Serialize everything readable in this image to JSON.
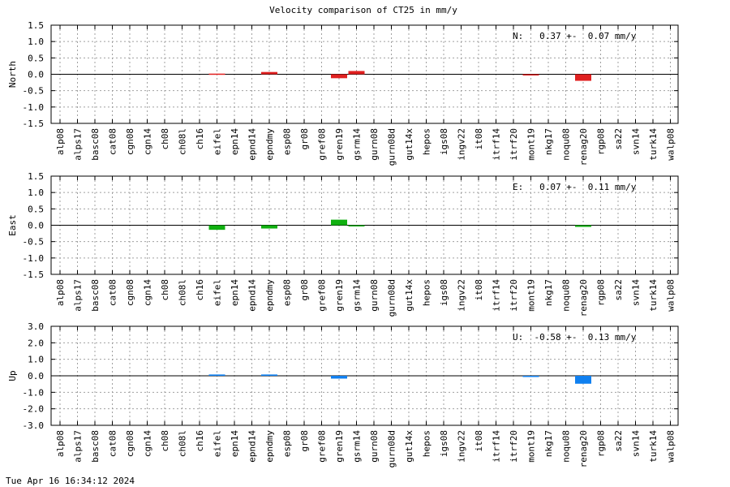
{
  "title": "Velocity comparison of CT25 in mm/y",
  "timestamp": "Tue Apr 16 16:34:12 2024",
  "chart_data": [
    {
      "type": "bar",
      "ylabel": "North",
      "annotation": "N:   0.37 +-  0.07 mm/y",
      "color": "#e02020",
      "ylim": [
        -1.5,
        1.5
      ],
      "yticks": [
        1.5,
        1.0,
        0.5,
        0.0,
        -0.5,
        -1.0,
        -1.5
      ],
      "ytick_labels": [
        "1.5",
        "1.0",
        "0.5",
        "0.0",
        "-0.5",
        "-1.0",
        "-1.5"
      ],
      "grid": true,
      "categories": [
        "alp08",
        "alps17",
        "basc08",
        "cat08",
        "cgn08",
        "cgn14",
        "ch08",
        "ch08l",
        "ch16",
        "eifel",
        "epn14",
        "epnd14",
        "epndmy",
        "esp08",
        "gr08",
        "gref08",
        "gren19",
        "gsrm14",
        "gurn08",
        "gurn08d",
        "gut14x",
        "hepos",
        "igs08",
        "ingv22",
        "it08",
        "itrf14",
        "itrf20",
        "mont19",
        "nkg17",
        "noqu08",
        "renag20",
        "rgp08",
        "sa22",
        "svn14",
        "turk14",
        "walp08"
      ],
      "values": [
        0,
        0,
        0,
        0,
        0,
        0,
        0,
        0,
        0,
        0.02,
        0,
        0,
        0.07,
        0,
        0,
        0,
        -0.12,
        0.1,
        0,
        0,
        0,
        0,
        0,
        0,
        0,
        0,
        0,
        -0.02,
        0,
        0,
        -0.2,
        0,
        0,
        0,
        0,
        0
      ]
    },
    {
      "type": "bar",
      "ylabel": "East",
      "annotation": "E:   0.07 +-  0.11 mm/y",
      "color": "#10b010",
      "ylim": [
        -1.5,
        1.5
      ],
      "yticks": [
        1.5,
        1.0,
        0.5,
        0.0,
        -0.5,
        -1.0,
        -1.5
      ],
      "ytick_labels": [
        "1.5",
        "1.0",
        "0.5",
        "0.0",
        "-0.5",
        "-1.0",
        "-1.5"
      ],
      "grid": true,
      "categories": [
        "alp08",
        "alps17",
        "basc08",
        "cat08",
        "cgn08",
        "cgn14",
        "ch08",
        "ch08l",
        "ch16",
        "eifel",
        "epn14",
        "epnd14",
        "epndmy",
        "esp08",
        "gr08",
        "gref08",
        "gren19",
        "gsrm14",
        "gurn08",
        "gurn08d",
        "gut14x",
        "hepos",
        "igs08",
        "ingv22",
        "it08",
        "itrf14",
        "itrf20",
        "mont19",
        "nkg17",
        "noqu08",
        "renag20",
        "rgp08",
        "sa22",
        "svn14",
        "turk14",
        "walp08"
      ],
      "values": [
        0,
        0,
        0,
        0,
        0,
        0,
        0,
        0,
        0,
        -0.14,
        0,
        0,
        -0.1,
        0,
        0,
        0,
        0.17,
        -0.02,
        0,
        0,
        0,
        0,
        0,
        0,
        0,
        0,
        0,
        0,
        0,
        0,
        -0.05,
        0,
        0,
        0,
        0,
        0
      ]
    },
    {
      "type": "bar",
      "ylabel": "Up",
      "annotation": "U:  -0.58 +-  0.13 mm/y",
      "color": "#1080f0",
      "ylim": [
        -3.0,
        3.0
      ],
      "yticks": [
        3.0,
        2.0,
        1.0,
        0.0,
        -1.0,
        -2.0,
        -3.0
      ],
      "ytick_labels": [
        "3.0",
        "2.0",
        "1.0",
        "0.0",
        "-1.0",
        "-2.0",
        "-3.0"
      ],
      "grid": true,
      "categories": [
        "alp08",
        "alps17",
        "basc08",
        "cat08",
        "cgn08",
        "cgn14",
        "ch08",
        "ch08l",
        "ch16",
        "eifel",
        "epn14",
        "epnd14",
        "epndmy",
        "esp08",
        "gr08",
        "gref08",
        "gren19",
        "gsrm14",
        "gurn08",
        "gurn08d",
        "gut14x",
        "hepos",
        "igs08",
        "ingv22",
        "it08",
        "itrf14",
        "itrf20",
        "mont19",
        "nkg17",
        "noqu08",
        "renag20",
        "rgp08",
        "sa22",
        "svn14",
        "turk14",
        "walp08"
      ],
      "values": [
        0,
        0,
        0,
        0,
        0,
        0,
        0,
        0,
        0,
        0.08,
        0,
        0,
        0.08,
        0,
        0,
        0,
        -0.17,
        0,
        0,
        0,
        0,
        0,
        0,
        0,
        0,
        0,
        0,
        -0.05,
        0,
        0,
        -0.48,
        0,
        0,
        0,
        0,
        0
      ]
    }
  ]
}
